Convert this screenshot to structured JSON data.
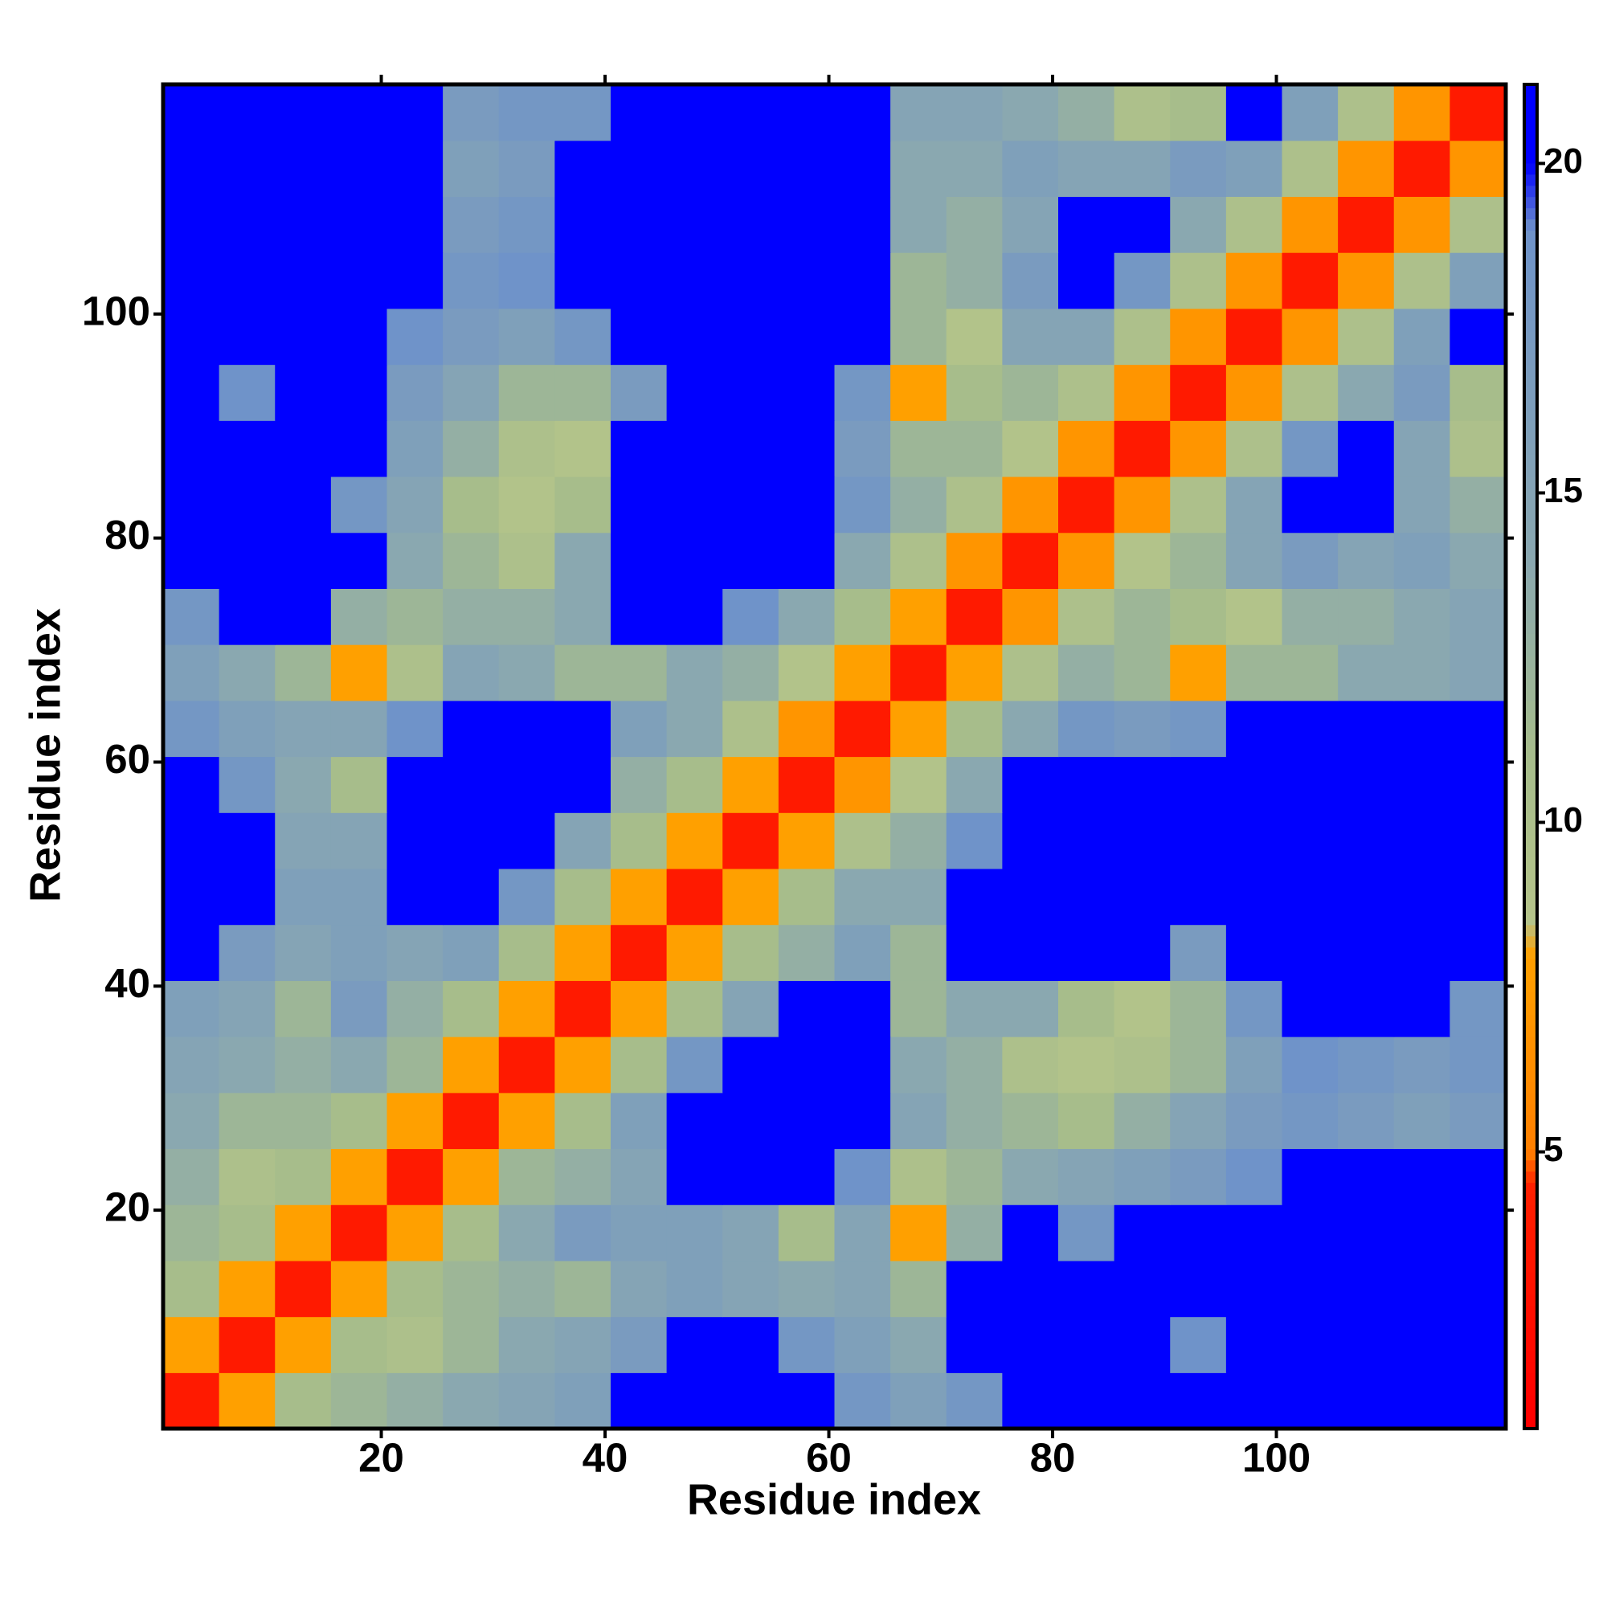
{
  "chart_data": {
    "type": "heatmap",
    "xlabel": "Residue index",
    "ylabel": "Residue index",
    "x": [
      3,
      8,
      13,
      18,
      23,
      28,
      33,
      38,
      43,
      48,
      53,
      58,
      63,
      68,
      73,
      78,
      83,
      88,
      93,
      98,
      103,
      108,
      113,
      118
    ],
    "y": [
      3,
      8,
      13,
      18,
      23,
      28,
      33,
      38,
      43,
      48,
      53,
      58,
      63,
      68,
      73,
      78,
      83,
      88,
      93,
      98,
      103,
      108,
      113,
      118
    ],
    "cell": 5,
    "xlim": [
      0.5,
      120.5
    ],
    "ylim": [
      0.5,
      120.5
    ],
    "xticks": [
      20,
      40,
      60,
      80,
      100
    ],
    "yticks": [
      20,
      40,
      60,
      80,
      100
    ],
    "colorscale": [
      [
        1,
        "#ff0000"
      ],
      [
        4.5,
        "#ff2000"
      ],
      [
        5,
        "#ff7f00"
      ],
      [
        8,
        "#ffa000"
      ],
      [
        8.5,
        "#b5c48a"
      ],
      [
        11,
        "#a7bd8b"
      ],
      [
        14,
        "#8aa8b0"
      ],
      [
        19,
        "#6f93c9"
      ],
      [
        20,
        "#0000ff"
      ]
    ],
    "colorbar": {
      "lim": [
        0.8,
        21.2
      ],
      "ticks": [
        5,
        10,
        15,
        20
      ]
    },
    "z": [
      [
        3.8,
        8,
        11,
        12,
        13,
        14,
        15,
        16,
        20,
        22,
        22,
        20,
        18,
        16,
        18,
        22,
        22,
        22,
        22,
        22,
        22,
        22,
        22,
        22
      ],
      [
        8,
        3.8,
        8,
        11,
        10,
        12,
        14,
        15,
        17,
        20,
        22,
        18,
        16,
        14,
        20,
        22,
        22,
        22,
        19,
        22,
        22,
        22,
        22,
        22
      ],
      [
        11,
        8,
        3.8,
        8,
        11,
        12,
        13,
        12,
        15,
        16,
        15,
        14,
        15,
        12,
        21,
        22,
        22,
        22,
        22,
        22,
        22,
        22,
        22,
        22
      ],
      [
        12,
        11,
        8,
        3.8,
        8,
        11,
        14,
        17,
        16,
        16,
        15,
        11,
        15,
        8,
        13,
        20,
        18,
        22,
        22,
        20,
        22,
        22,
        22,
        22
      ],
      [
        13,
        10,
        11,
        8,
        3.8,
        8,
        12,
        13,
        15,
        20,
        22,
        22,
        19,
        10,
        12,
        14,
        15,
        16,
        17,
        19,
        22,
        22,
        22,
        20
      ],
      [
        14,
        12,
        12,
        11,
        8,
        3.8,
        8,
        11,
        16,
        22,
        22,
        22,
        22,
        15,
        13,
        12,
        11,
        13,
        15,
        17,
        18,
        17,
        16,
        17
      ],
      [
        15,
        14,
        13,
        14,
        12,
        8,
        3.8,
        8,
        11,
        18,
        22,
        22,
        22,
        14,
        13,
        10,
        9,
        10,
        12,
        16,
        19,
        18,
        17,
        18
      ],
      [
        16,
        15,
        12,
        17,
        13,
        11,
        8,
        3.8,
        8,
        11,
        15,
        20,
        20,
        12,
        14,
        14,
        11,
        9,
        12,
        18,
        22,
        22,
        20,
        18
      ],
      [
        20,
        17,
        15,
        16,
        15,
        16,
        11,
        8,
        3.8,
        8,
        11,
        13,
        16,
        12,
        22,
        22,
        22,
        20,
        17,
        22,
        22,
        22,
        22,
        22
      ],
      [
        22,
        20,
        16,
        16,
        20,
        22,
        18,
        11,
        8,
        3.8,
        8,
        11,
        14,
        14,
        22,
        22,
        22,
        22,
        22,
        22,
        22,
        22,
        22,
        22
      ],
      [
        22,
        22,
        15,
        15,
        22,
        22,
        22,
        15,
        11,
        8,
        3.8,
        8,
        10,
        13,
        19,
        22,
        22,
        22,
        22,
        22,
        22,
        22,
        22,
        22
      ],
      [
        20,
        18,
        14,
        11,
        22,
        22,
        22,
        20,
        13,
        11,
        8,
        3.8,
        7,
        9,
        14,
        20,
        22,
        21,
        22,
        22,
        22,
        22,
        22,
        22
      ],
      [
        18,
        16,
        15,
        15,
        19,
        22,
        22,
        20,
        16,
        14,
        10,
        7,
        3.8,
        8,
        11,
        14,
        18,
        17,
        18,
        20,
        22,
        22,
        22,
        20
      ],
      [
        16,
        14,
        12,
        8,
        10,
        15,
        14,
        12,
        12,
        14,
        13,
        9,
        8,
        3.8,
        8,
        10,
        13,
        12,
        8,
        12,
        12,
        14,
        14,
        15
      ],
      [
        18,
        20,
        21,
        13,
        12,
        13,
        13,
        14,
        22,
        22,
        19,
        14,
        11,
        8,
        3.8,
        7,
        10,
        12,
        11,
        9,
        13,
        13,
        14,
        15
      ],
      [
        22,
        22,
        22,
        20,
        14,
        12,
        10,
        14,
        22,
        22,
        22,
        20,
        14,
        10,
        7,
        3.8,
        7,
        9,
        12,
        15,
        17,
        15,
        16,
        14
      ],
      [
        22,
        22,
        22,
        18,
        15,
        11,
        9,
        11,
        22,
        22,
        22,
        22,
        18,
        13,
        10,
        7,
        3.8,
        7,
        10,
        15,
        22,
        20,
        15,
        13
      ],
      [
        22,
        22,
        22,
        22,
        16,
        13,
        10,
        9,
        20,
        22,
        22,
        21,
        17,
        12,
        12,
        9,
        7,
        3.8,
        7,
        10,
        18,
        21,
        15,
        10
      ],
      [
        22,
        19,
        22,
        22,
        17,
        15,
        12,
        12,
        17,
        22,
        22,
        22,
        18,
        8,
        11,
        12,
        10,
        7,
        3.8,
        7,
        10,
        14,
        17,
        11
      ],
      [
        22,
        22,
        22,
        20,
        19,
        17,
        16,
        18,
        22,
        22,
        22,
        22,
        20,
        12,
        9,
        15,
        15,
        10,
        7,
        3.8,
        7,
        10,
        16,
        22
      ],
      [
        22,
        22,
        22,
        22,
        22,
        18,
        19,
        22,
        22,
        22,
        22,
        22,
        22,
        12,
        13,
        17,
        22,
        18,
        10,
        7,
        3.8,
        7,
        10,
        16
      ],
      [
        22,
        22,
        22,
        22,
        22,
        17,
        18,
        22,
        22,
        22,
        22,
        22,
        22,
        14,
        13,
        15,
        20,
        21,
        14,
        10,
        7,
        3.8,
        7,
        10
      ],
      [
        22,
        22,
        22,
        22,
        22,
        16,
        17,
        20,
        22,
        22,
        22,
        22,
        22,
        14,
        14,
        16,
        15,
        15,
        17,
        16,
        10,
        7,
        3.8,
        7
      ],
      [
        22,
        22,
        22,
        22,
        20,
        17,
        18,
        18,
        22,
        22,
        22,
        22,
        20,
        15,
        15,
        14,
        13,
        10,
        11,
        22,
        16,
        10,
        7,
        3.8
      ]
    ]
  }
}
